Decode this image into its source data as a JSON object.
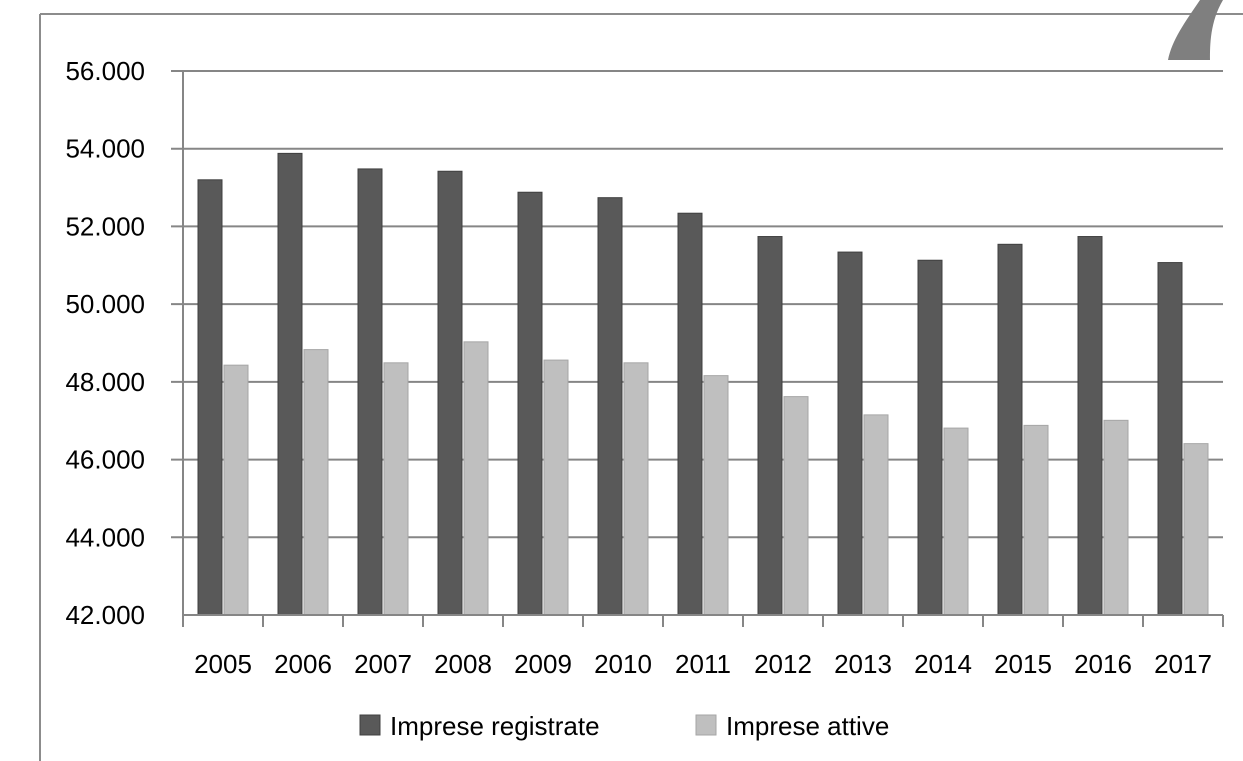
{
  "chart_data": {
    "type": "bar",
    "title": "",
    "xlabel": "",
    "ylabel": "",
    "categories": [
      "2005",
      "2006",
      "2007",
      "2008",
      "2009",
      "2010",
      "2011",
      "2012",
      "2013",
      "2014",
      "2015",
      "2016",
      "2017"
    ],
    "series": [
      {
        "name": "Imprese registrate",
        "color": "#595959",
        "values": [
          53200,
          53880,
          53480,
          53420,
          52880,
          52740,
          52340,
          51740,
          51340,
          51130,
          51540,
          51740,
          51070
        ]
      },
      {
        "name": "Imprese attive",
        "color": "#bfbfbf",
        "values": [
          48430,
          48830,
          48490,
          49030,
          48560,
          48490,
          48160,
          47620,
          47150,
          46810,
          46880,
          47010,
          46410
        ]
      }
    ],
    "ylim": [
      42000,
      56000
    ],
    "yticks": [
      42000,
      44000,
      46000,
      48000,
      50000,
      52000,
      54000,
      56000
    ],
    "ytick_labels": [
      "42.000",
      "44.000",
      "46.000",
      "48.000",
      "50.000",
      "52.000",
      "54.000",
      "56.000"
    ],
    "grid": true,
    "legend_position": "bottom"
  }
}
